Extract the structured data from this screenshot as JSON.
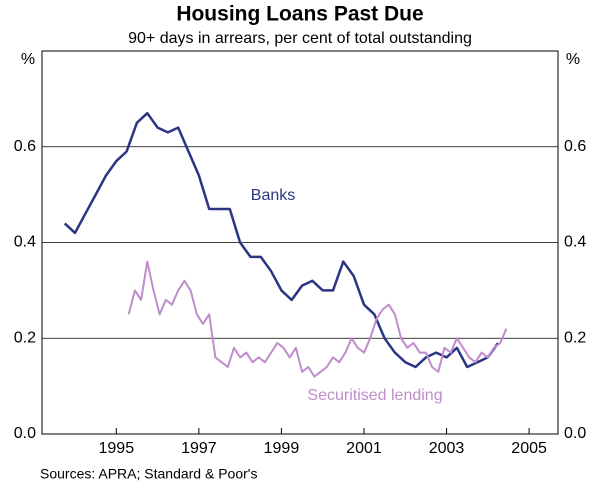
{
  "chart_data": {
    "type": "line",
    "title": "Housing Loans Past Due",
    "subtitle": "90+ days in arrears, per cent of total outstanding",
    "y_unit": "%",
    "y2_unit": "%",
    "source": "Sources: APRA; Standard & Poor's",
    "xlim": [
      1993.2,
      2005.7
    ],
    "xticks": [
      1995,
      1997,
      1999,
      2001,
      2003,
      2005
    ],
    "ylim": [
      0,
      0.8
    ],
    "yticks": [
      {
        "value": 0,
        "label": "0.0"
      },
      0.2,
      0.4,
      0.6
    ],
    "y2lim": [
      0,
      0.8
    ],
    "y2ticks": [
      {
        "value": 0,
        "label": "0.0"
      },
      0.2,
      0.4,
      0.6
    ],
    "grid": true,
    "series": [
      {
        "name": "Banks",
        "color": "#2b3584",
        "x": [
          1993.75,
          1994,
          1994.25,
          1994.5,
          1994.75,
          1995,
          1995.25,
          1995.5,
          1995.75,
          1996,
          1996.25,
          1996.5,
          1996.75,
          1997,
          1997.25,
          1997.5,
          1997.75,
          1998,
          1998.25,
          1998.5,
          1998.75,
          1999,
          1999.25,
          1999.5,
          1999.75,
          2000,
          2000.25,
          2000.5,
          2000.75,
          2001,
          2001.25,
          2001.5,
          2001.75,
          2002,
          2002.25,
          2002.5,
          2002.75,
          2003,
          2003.25,
          2003.5,
          2003.75,
          2004,
          2004.25
        ],
        "values": [
          0.44,
          0.42,
          0.46,
          0.5,
          0.54,
          0.57,
          0.59,
          0.65,
          0.67,
          0.64,
          0.63,
          0.64,
          0.59,
          0.54,
          0.47,
          0.47,
          0.47,
          0.4,
          0.37,
          0.37,
          0.34,
          0.3,
          0.28,
          0.31,
          0.32,
          0.3,
          0.3,
          0.36,
          0.33,
          0.27,
          0.25,
          0.2,
          0.17,
          0.15,
          0.14,
          0.16,
          0.17,
          0.16,
          0.18,
          0.14,
          0.15,
          0.16,
          0.19
        ]
      },
      {
        "name": "Securitised lending",
        "color": "#c08ccc",
        "x": [
          1995.3,
          1995.45,
          1995.6,
          1995.75,
          1995.9,
          1996.05,
          1996.2,
          1996.35,
          1996.5,
          1996.65,
          1996.8,
          1996.95,
          1997.1,
          1997.25,
          1997.4,
          1997.55,
          1997.7,
          1997.85,
          1998,
          1998.15,
          1998.3,
          1998.45,
          1998.6,
          1998.75,
          1998.9,
          1999.05,
          1999.2,
          1999.35,
          1999.5,
          1999.65,
          1999.8,
          1999.95,
          2000.1,
          2000.25,
          2000.4,
          2000.55,
          2000.7,
          2000.85,
          2001,
          2001.15,
          2001.3,
          2001.45,
          2001.6,
          2001.75,
          2001.9,
          2002.05,
          2002.2,
          2002.35,
          2002.5,
          2002.65,
          2002.8,
          2002.95,
          2003.1,
          2003.25,
          2003.4,
          2003.55,
          2003.7,
          2003.85,
          2004,
          2004.15,
          2004.3,
          2004.45
        ],
        "values": [
          0.25,
          0.3,
          0.28,
          0.36,
          0.3,
          0.25,
          0.28,
          0.27,
          0.3,
          0.32,
          0.3,
          0.25,
          0.23,
          0.25,
          0.16,
          0.15,
          0.14,
          0.18,
          0.16,
          0.17,
          0.15,
          0.16,
          0.15,
          0.17,
          0.19,
          0.18,
          0.16,
          0.18,
          0.13,
          0.14,
          0.12,
          0.13,
          0.14,
          0.16,
          0.15,
          0.17,
          0.2,
          0.18,
          0.17,
          0.2,
          0.24,
          0.26,
          0.27,
          0.25,
          0.2,
          0.18,
          0.19,
          0.17,
          0.17,
          0.14,
          0.13,
          0.18,
          0.17,
          0.2,
          0.18,
          0.16,
          0.15,
          0.17,
          0.16,
          0.18,
          0.19,
          0.22
        ]
      }
    ]
  }
}
